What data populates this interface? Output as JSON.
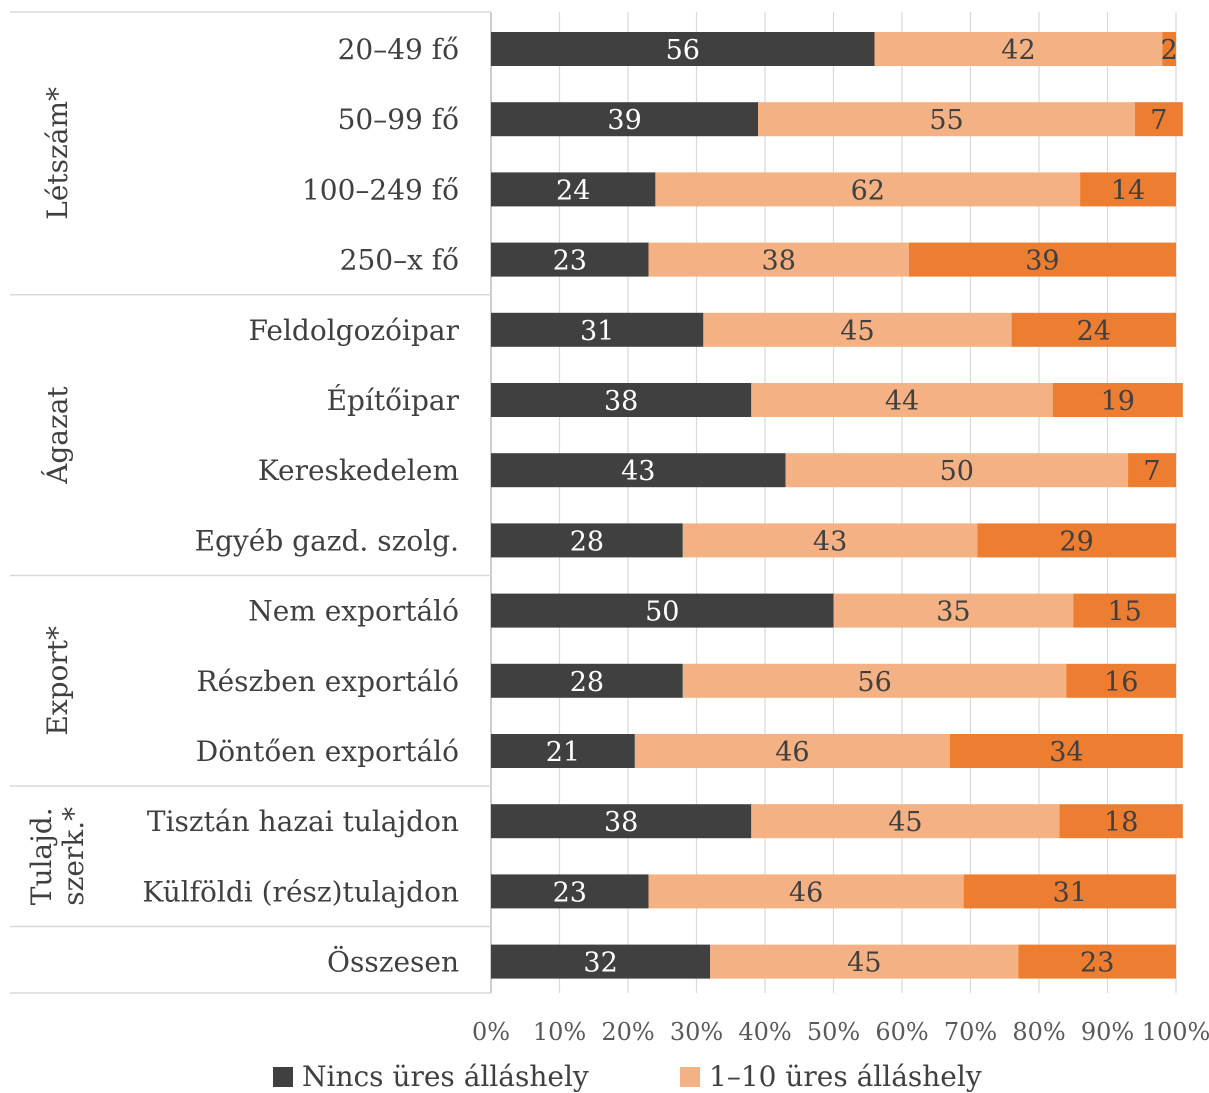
{
  "chart_data": {
    "type": "bar",
    "orientation": "horizontal",
    "stacked": "percent",
    "categories": [
      "20–49 fő",
      "50–99 fő",
      "100–249 fő",
      "250–x fő",
      "Feldolgozóipar",
      "Építőipar",
      "Kereskedelem",
      "Egyéb gazd. szolg.",
      "Nem exportáló",
      "Részben exportáló",
      "Döntően exportáló",
      "Tisztán hazai tulajdon",
      "Külföldi (rész)tulajdon",
      "Összesen"
    ],
    "groups": [
      {
        "label": "Létszám*",
        "lines": [
          "Létszám*"
        ],
        "start": 0,
        "end": 3
      },
      {
        "label": "Ágazat",
        "lines": [
          "Ágazat"
        ],
        "start": 4,
        "end": 7
      },
      {
        "label": "Export*",
        "lines": [
          "Export*"
        ],
        "start": 8,
        "end": 10
      },
      {
        "label": "Tulajd. szerk.*",
        "lines": [
          "Tulajd.",
          "szerk.*"
        ],
        "start": 11,
        "end": 12
      },
      {
        "label": "",
        "lines": [],
        "start": 13,
        "end": 13
      }
    ],
    "series": [
      {
        "name": "Nincs üres álláshely",
        "color": "#404040",
        "values": [
          56,
          39,
          24,
          23,
          31,
          38,
          43,
          28,
          50,
          28,
          21,
          38,
          23,
          32
        ]
      },
      {
        "name": "1–10 üres álláshely",
        "color": "#F4B183",
        "values": [
          42,
          55,
          62,
          38,
          45,
          44,
          50,
          43,
          35,
          56,
          46,
          45,
          46,
          45
        ]
      },
      {
        "name": "",
        "color": "#ED7D31",
        "values": [
          2,
          7,
          14,
          39,
          24,
          19,
          7,
          29,
          15,
          16,
          34,
          18,
          31,
          23
        ]
      }
    ],
    "label_colors": [
      "#ffffff",
      "#404040",
      "#404040"
    ],
    "xticks": [
      "0%",
      "10%",
      "20%",
      "30%",
      "40%",
      "50%",
      "60%",
      "70%",
      "80%",
      "90%",
      "100%"
    ],
    "xlim": [
      0,
      100
    ],
    "grid": "vertical",
    "legend": "bottom"
  }
}
